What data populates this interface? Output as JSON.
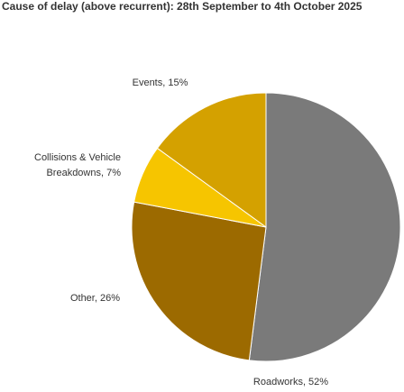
{
  "chart_data": {
    "type": "pie",
    "title": "Cause of delay (above recurrent): 28th September to 4th October 2025",
    "categories": [
      "Roadworks, 52%",
      "Other, 26%",
      "Collisions & Vehicle Breakdowns, 7%",
      "Events, 15%"
    ],
    "values": [
      52,
      26,
      7,
      15
    ],
    "colors": [
      "#7a7a7a",
      "#9c6a00",
      "#f6c500",
      "#d4a100"
    ]
  }
}
